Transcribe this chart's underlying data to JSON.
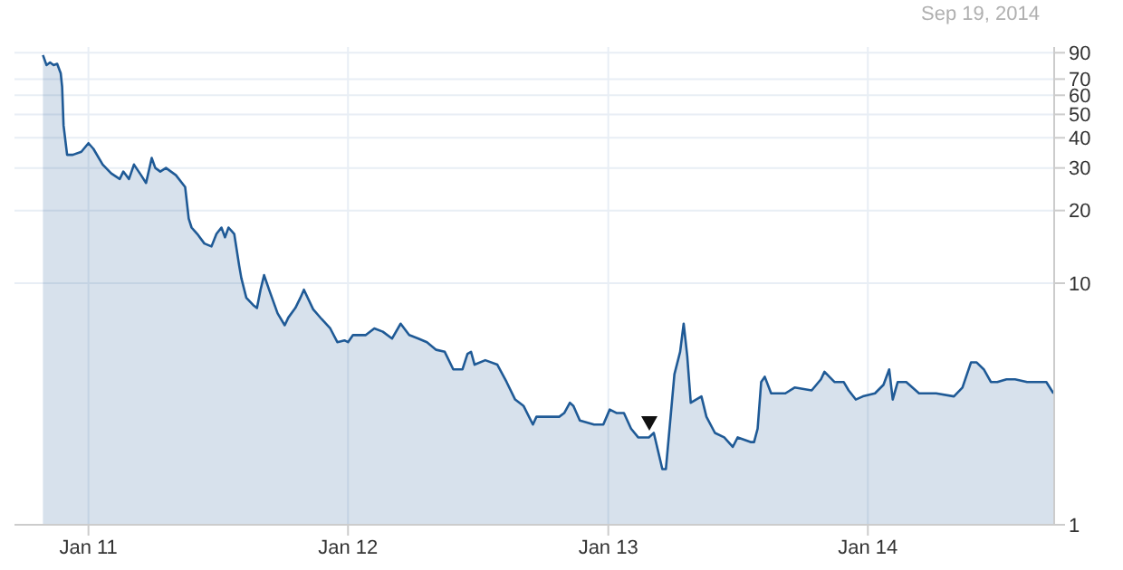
{
  "chart_data": {
    "type": "area",
    "annotations": [
      "Sep 19, 2014"
    ],
    "log": true,
    "grid": true,
    "xlim": [
      "2010-09-19",
      "2014-09-20"
    ],
    "xticks": [
      {
        "value": "2011-01-01",
        "label": "Jan 11"
      },
      {
        "value": "2012-01-01",
        "label": "Jan 12"
      },
      {
        "value": "2013-01-01",
        "label": "Jan 13"
      },
      {
        "value": "2014-01-01",
        "label": "Jan 14"
      }
    ],
    "ylim": [
      1,
      95
    ],
    "yticks": [
      1,
      10,
      20,
      30,
      40,
      50,
      60,
      70,
      90
    ],
    "color": "#1f5a96",
    "x": [
      "2010-10-29",
      "2010-11-03",
      "2010-11-08",
      "2010-11-13",
      "2010-11-18",
      "2010-11-23",
      "2010-11-25",
      "2010-11-27",
      "2010-12-02",
      "2010-12-10",
      "2010-12-22",
      "2011-01-01",
      "2011-01-08",
      "2011-01-21",
      "2011-02-02",
      "2011-02-14",
      "2011-02-19",
      "2011-02-27",
      "2011-03-06",
      "2011-03-16",
      "2011-03-23",
      "2011-03-31",
      "2011-04-05",
      "2011-04-12",
      "2011-04-20",
      "2011-05-04",
      "2011-05-17",
      "2011-05-22",
      "2011-05-26",
      "2011-06-03",
      "2011-06-13",
      "2011-06-23",
      "2011-06-30",
      "2011-07-07",
      "2011-07-12",
      "2011-07-17",
      "2011-07-25",
      "2011-08-01",
      "2011-08-04",
      "2011-08-11",
      "2011-08-21",
      "2011-08-26",
      "2011-08-31",
      "2011-09-05",
      "2011-09-12",
      "2011-09-24",
      "2011-10-04",
      "2011-10-09",
      "2011-10-19",
      "2011-10-26",
      "2011-10-31",
      "2011-11-13",
      "2011-11-25",
      "2011-12-07",
      "2011-12-17",
      "2011-12-27",
      "2012-01-01",
      "2012-01-08",
      "2012-01-26",
      "2012-02-07",
      "2012-02-19",
      "2012-03-03",
      "2012-03-15",
      "2012-03-27",
      "2012-04-09",
      "2012-04-21",
      "2012-05-04",
      "2012-05-16",
      "2012-05-28",
      "2012-06-10",
      "2012-06-17",
      "2012-06-22",
      "2012-06-27",
      "2012-07-12",
      "2012-07-29",
      "2012-08-11",
      "2012-08-23",
      "2012-09-04",
      "2012-09-17",
      "2012-09-22",
      "2012-10-04",
      "2012-10-24",
      "2012-10-31",
      "2012-11-08",
      "2012-11-13",
      "2012-11-22",
      "2012-12-12",
      "2012-12-25",
      "2013-01-03",
      "2013-01-13",
      "2013-01-23",
      "2013-02-02",
      "2013-02-12",
      "2013-02-27",
      "2013-03-06",
      "2013-03-18",
      "2013-03-23",
      "2013-04-04",
      "2013-04-12",
      "2013-04-17",
      "2013-04-22",
      "2013-04-27",
      "2013-05-12",
      "2013-05-19",
      "2013-05-31",
      "2013-06-13",
      "2013-06-25",
      "2013-07-02",
      "2013-07-20",
      "2013-07-25",
      "2013-07-30",
      "2013-08-04",
      "2013-08-09",
      "2013-08-18",
      "2013-09-07",
      "2013-09-20",
      "2013-10-14",
      "2013-10-27",
      "2013-11-01",
      "2013-11-15",
      "2013-11-28",
      "2013-12-05",
      "2013-12-15",
      "2013-12-25",
      "2014-01-11",
      "2014-01-23",
      "2014-01-31",
      "2014-02-05",
      "2014-02-12",
      "2014-02-24",
      "2014-03-14",
      "2014-04-07",
      "2014-05-02",
      "2014-05-14",
      "2014-05-26",
      "2014-06-03",
      "2014-06-13",
      "2014-06-23",
      "2014-07-02",
      "2014-07-15",
      "2014-07-27",
      "2014-08-13",
      "2014-08-26",
      "2014-09-09",
      "2014-09-19"
    ],
    "values": [
      88,
      80,
      82,
      80,
      81,
      74,
      65,
      45,
      34,
      34,
      35,
      38,
      36,
      31,
      28.5,
      27,
      29,
      27,
      31,
      28,
      26,
      33,
      30,
      29,
      30,
      28,
      25,
      18.5,
      17,
      16,
      14.6,
      14.2,
      16,
      17,
      15.5,
      17,
      16,
      11.8,
      10.5,
      8.7,
      8.1,
      7.9,
      9.4,
      10.8,
      9.4,
      7.5,
      6.7,
      7.2,
      7.9,
      8.7,
      9.4,
      7.8,
      7.1,
      6.5,
      5.7,
      5.8,
      5.7,
      6.1,
      6.1,
      6.5,
      6.3,
      5.9,
      6.8,
      6.1,
      5.9,
      5.7,
      5.3,
      5.2,
      4.4,
      4.4,
      5.1,
      5.2,
      4.6,
      4.8,
      4.6,
      3.9,
      3.3,
      3.1,
      2.6,
      2.8,
      2.8,
      2.8,
      2.9,
      3.2,
      3.1,
      2.7,
      2.6,
      2.6,
      3.0,
      2.9,
      2.9,
      2.5,
      2.3,
      2.3,
      2.4,
      1.7,
      1.7,
      4.2,
      5.2,
      6.8,
      5.0,
      3.2,
      3.4,
      2.8,
      2.4,
      2.3,
      2.1,
      2.3,
      2.2,
      2.2,
      2.5,
      3.9,
      4.1,
      3.5,
      3.5,
      3.7,
      3.6,
      4.0,
      4.3,
      3.9,
      3.9,
      3.6,
      3.3,
      3.4,
      3.5,
      3.8,
      4.4,
      3.3,
      3.9,
      3.9,
      3.5,
      3.5,
      3.4,
      3.7,
      4.7,
      4.7,
      4.4,
      3.9,
      3.9,
      4.0,
      4.0,
      3.9,
      3.9,
      3.9,
      3.5
    ]
  }
}
